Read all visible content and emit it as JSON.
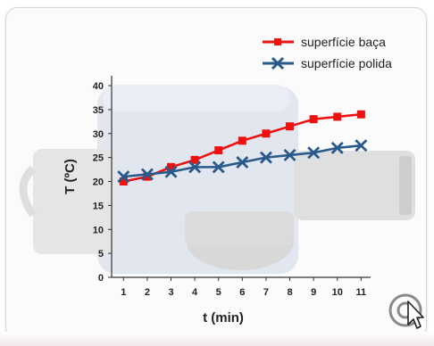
{
  "chart_data": {
    "type": "line",
    "xlabel": "t (min)",
    "ylabel": "T (ºC)",
    "x": [
      1,
      2,
      3,
      4,
      5,
      6,
      7,
      8,
      9,
      10,
      11
    ],
    "x_ticks": [
      1,
      2,
      3,
      4,
      5,
      6,
      7,
      8,
      9,
      10,
      11
    ],
    "xlim": [
      0.5,
      11.4
    ],
    "ylim": [
      0,
      40
    ],
    "y_ticks": [
      0,
      5,
      10,
      15,
      20,
      25,
      30,
      35,
      40
    ],
    "grid": false,
    "legend_position": "top-right",
    "series": [
      {
        "name": "superfície baça",
        "color": "#ee1111",
        "marker": "square",
        "values": [
          20,
          21,
          23,
          24.5,
          26.5,
          28.5,
          30,
          31.5,
          33,
          33.5,
          34
        ]
      },
      {
        "name": "superfície polida",
        "color": "#2a5a8c",
        "marker": "x",
        "values": [
          21,
          21.5,
          22,
          23,
          23,
          24,
          25,
          25.5,
          26,
          27,
          27.5
        ]
      }
    ]
  },
  "icons": {
    "cursor": "cursor-icon",
    "watermark": "watermark-icon"
  }
}
